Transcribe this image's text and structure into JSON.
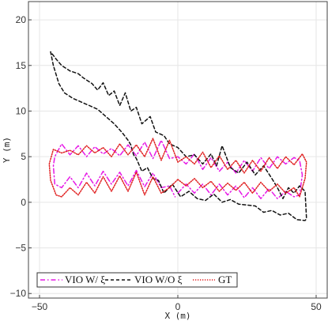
{
  "chart_data": {
    "type": "line",
    "title": "",
    "xlabel": "X (m)",
    "ylabel": "Y (m)",
    "xlim": [
      -54,
      54
    ],
    "ylim": [
      -10.5,
      22
    ],
    "xticks": [
      -50,
      0,
      50
    ],
    "yticks": [
      -10,
      -5,
      0,
      5,
      10,
      15,
      20
    ],
    "x_tick_labels": [
      "−50",
      "0",
      "50"
    ],
    "y_tick_labels": [
      "−10",
      "−5",
      "0",
      "5",
      "10",
      "15",
      "20"
    ],
    "grid": true,
    "legend_position": "bottom-left",
    "series": [
      {
        "name": "VIO W/ ξ",
        "color": "#e619e6",
        "dash": "dashdot",
        "x": [
          0,
          3,
          6,
          9,
          12,
          15,
          18,
          21,
          24,
          27,
          30,
          33,
          36,
          39,
          42,
          44,
          45,
          44,
          42,
          39,
          36,
          33,
          30,
          27,
          24,
          21,
          18,
          15,
          12,
          9,
          6,
          3,
          0,
          -3,
          -6,
          -9,
          -12,
          -15,
          -18,
          -21,
          -24,
          -27,
          -30,
          -33,
          -36,
          -39,
          -42,
          -44.5,
          -45,
          -44.5,
          -42,
          -39,
          -36,
          -33,
          -30,
          -27,
          -24,
          -21,
          -18,
          -15,
          -12,
          -9,
          -6,
          -3,
          -1
        ],
        "y": [
          1.0,
          2.0,
          1.0,
          2.0,
          0.8,
          2.0,
          0.8,
          1.8,
          0.5,
          1.6,
          0.4,
          1.5,
          0.4,
          1.2,
          0.6,
          0.8,
          3.0,
          4.6,
          4.9,
          4.2,
          5.0,
          3.7,
          4.9,
          3.4,
          4.6,
          3.2,
          4.4,
          3.4,
          4.9,
          3.6,
          5.3,
          4.2,
          5.0,
          4.8,
          6.8,
          4.8,
          6.6,
          5.1,
          6.3,
          5.1,
          5.9,
          5.3,
          6.1,
          5.0,
          6.2,
          5.2,
          6.4,
          5.0,
          4.0,
          2.0,
          1.6,
          2.8,
          1.6,
          3.2,
          1.8,
          3.4,
          2.0,
          3.3,
          1.8,
          3.5,
          1.7,
          3.2,
          1.6,
          1.8,
          0.6
        ]
      },
      {
        "name": "VIO W/O ξ",
        "color": "#111111",
        "dash": "dashed",
        "x": [
          -45,
          -46,
          -44,
          -42,
          -39,
          -36,
          -34,
          -31,
          -29,
          -27,
          -25,
          -23,
          -21,
          -19,
          -17,
          -15,
          -13,
          -10,
          -8,
          -5,
          -3,
          0,
          3,
          6,
          9,
          12,
          14,
          16,
          19,
          22,
          25,
          28,
          31,
          34,
          36,
          38,
          40,
          42,
          44,
          46,
          46.5,
          46,
          43,
          40,
          37,
          34,
          31,
          28,
          25,
          22,
          19,
          16,
          13,
          10,
          7,
          4,
          1,
          -2,
          -5,
          -7,
          -9,
          -11,
          -13,
          -15,
          -16,
          -17,
          -18,
          -20,
          -23,
          -26,
          -29,
          -32,
          -35,
          -38,
          -41,
          -43,
          -45
        ],
        "y": [
          15.0,
          16.5,
          15.7,
          15.0,
          14.4,
          14.1,
          13.6,
          13.0,
          12.3,
          13.1,
          11.7,
          12.2,
          10.6,
          12.0,
          10.0,
          10.4,
          8.6,
          9.4,
          7.7,
          7.3,
          6.4,
          6.0,
          5.0,
          5.2,
          4.2,
          5.3,
          4.0,
          6.2,
          3.8,
          3.2,
          4.4,
          3.0,
          4.0,
          2.6,
          1.6,
          0.4,
          1.6,
          1.0,
          1.8,
          1.2,
          -1.8,
          -2.0,
          -1.9,
          -1.2,
          -1.4,
          -0.9,
          -1.1,
          -0.4,
          -0.3,
          -0.2,
          0.3,
          0.0,
          0.9,
          0.2,
          0.4,
          1.2,
          0.6,
          2.0,
          1.0,
          2.4,
          2.6,
          3.8,
          3.4,
          4.8,
          5.2,
          6.3,
          6.8,
          7.6,
          8.6,
          9.4,
          10.2,
          10.6,
          11.0,
          11.4,
          12.0,
          13.0,
          15.0
        ]
      },
      {
        "name": "GT",
        "color": "#e02020",
        "dash": "dotted",
        "x": [
          0,
          3,
          6,
          9,
          12,
          15,
          18,
          21,
          24,
          27,
          30,
          33,
          36,
          39,
          42,
          44,
          46,
          46.5,
          45,
          42,
          39,
          36,
          33,
          30,
          27,
          24,
          21,
          18,
          15,
          12,
          9,
          6,
          3,
          0,
          -3,
          -6,
          -9,
          -12,
          -15,
          -18,
          -21,
          -24,
          -27,
          -30,
          -33,
          -36,
          -39,
          -42,
          -45,
          -46.5,
          -46,
          -44,
          -42,
          -39,
          -36,
          -33,
          -30,
          -27,
          -24,
          -21,
          -18,
          -15,
          -12,
          -9,
          -6,
          -3,
          0
        ],
        "y": [
          2.5,
          1.8,
          2.6,
          1.6,
          2.3,
          1.2,
          2.1,
          1.3,
          2.2,
          1.0,
          2.2,
          1.2,
          2.0,
          1.0,
          1.6,
          0.6,
          2.6,
          4.4,
          5.3,
          4.1,
          5.0,
          3.7,
          4.9,
          3.4,
          4.6,
          3.2,
          4.6,
          3.6,
          5.1,
          3.8,
          5.5,
          4.2,
          5.0,
          4.4,
          6.8,
          4.6,
          7.0,
          5.0,
          6.3,
          5.2,
          6.4,
          5.0,
          6.0,
          5.4,
          6.2,
          5.2,
          5.7,
          5.4,
          5.8,
          4.2,
          2.4,
          0.8,
          0.6,
          1.6,
          0.8,
          2.2,
          1.0,
          2.8,
          1.2,
          2.9,
          1.2,
          3.3,
          0.8,
          2.8,
          1.0,
          1.6,
          2.5
        ]
      }
    ]
  }
}
